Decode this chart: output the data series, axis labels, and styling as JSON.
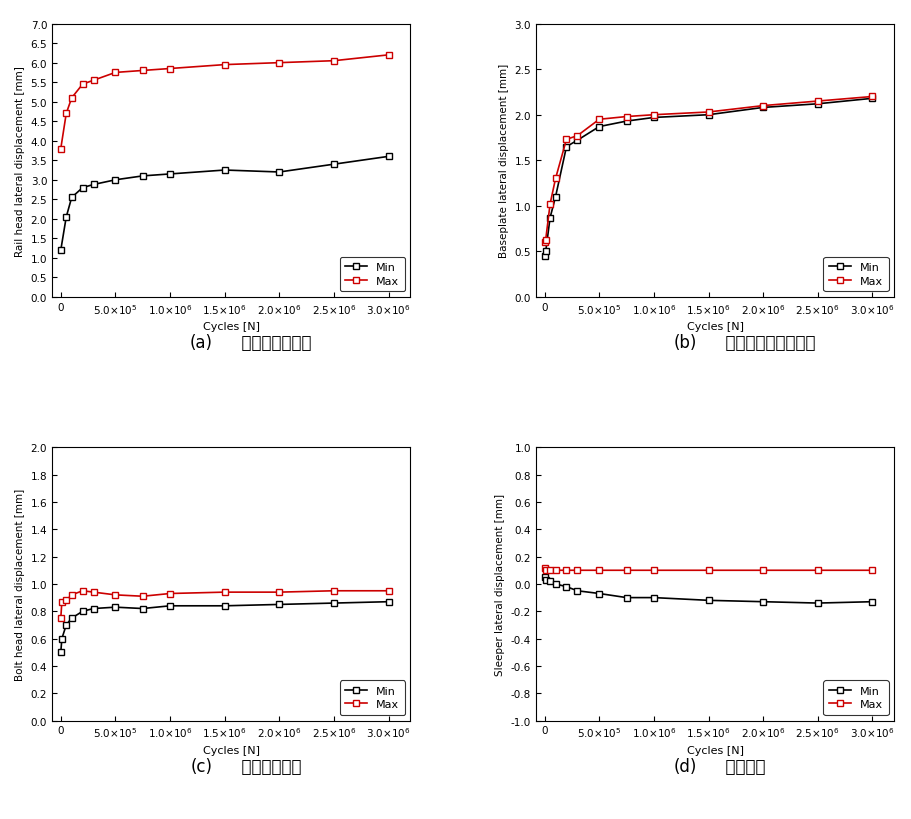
{
  "cycles_a": [
    0,
    50000,
    100000,
    200000,
    300000,
    500000,
    750000,
    1000000,
    1500000,
    2000000,
    2500000,
    3000000
  ],
  "cycles_b": [
    0,
    10000,
    50000,
    100000,
    200000,
    300000,
    500000,
    750000,
    1000000,
    1500000,
    2000000,
    2500000,
    3000000
  ],
  "cycles_c": [
    0,
    10000,
    50000,
    100000,
    200000,
    300000,
    500000,
    750000,
    1000000,
    1500000,
    2000000,
    2500000,
    3000000
  ],
  "cycles_d": [
    0,
    10000,
    50000,
    100000,
    200000,
    300000,
    500000,
    750000,
    1000000,
    1500000,
    2000000,
    2500000,
    3000000
  ],
  "subplot_a": {
    "title_a": "(a)",
    "title_b": "레일두부횟변위",
    "ylabel": "Rail head lateral displacement [mm]",
    "ylim": [
      0.0,
      7.0
    ],
    "yticks": [
      0.0,
      0.5,
      1.0,
      1.5,
      2.0,
      2.5,
      3.0,
      3.5,
      4.0,
      4.5,
      5.0,
      5.5,
      6.0,
      6.5,
      7.0
    ],
    "min_values": [
      1.2,
      2.05,
      2.55,
      2.8,
      2.88,
      3.0,
      3.1,
      3.15,
      3.25,
      3.2,
      3.4,
      3.6
    ],
    "max_values": [
      3.8,
      4.7,
      5.1,
      5.45,
      5.55,
      5.75,
      5.8,
      5.85,
      5.95,
      6.0,
      6.05,
      6.2
    ]
  },
  "subplot_b": {
    "title_a": "(b)",
    "title_b": "베이스플레이트변위",
    "ylabel": "Baseplate lateral displacement [mm]",
    "ylim": [
      0.0,
      3.0
    ],
    "yticks": [
      0.0,
      0.5,
      1.0,
      1.5,
      2.0,
      2.5,
      3.0
    ],
    "min_values": [
      0.45,
      0.5,
      0.87,
      1.1,
      1.65,
      1.72,
      1.87,
      1.93,
      1.97,
      2.0,
      2.08,
      2.12,
      2.18
    ],
    "max_values": [
      0.6,
      0.63,
      1.02,
      1.3,
      1.73,
      1.77,
      1.95,
      1.98,
      2.0,
      2.03,
      2.1,
      2.15,
      2.2
    ]
  },
  "subplot_c": {
    "title_a": "(c)",
    "title_b": "봇트두부변위",
    "ylabel": "Bolt head lateral displacement [mm]",
    "ylim": [
      0.0,
      2.0
    ],
    "yticks": [
      0.0,
      0.2,
      0.4,
      0.6,
      0.8,
      1.0,
      1.2,
      1.4,
      1.6,
      1.8,
      2.0
    ],
    "min_values": [
      0.5,
      0.6,
      0.7,
      0.75,
      0.8,
      0.82,
      0.83,
      0.82,
      0.84,
      0.84,
      0.85,
      0.86,
      0.87
    ],
    "max_values": [
      0.75,
      0.87,
      0.88,
      0.92,
      0.95,
      0.94,
      0.92,
      0.91,
      0.93,
      0.94,
      0.94,
      0.95,
      0.95
    ]
  },
  "subplot_d": {
    "title_a": "(d)",
    "title_b": "침목변위",
    "ylabel": "Sleeper lateral displacement [mm]",
    "ylim": [
      -1.0,
      1.0
    ],
    "yticks": [
      -1.0,
      -0.8,
      -0.6,
      -0.4,
      -0.2,
      0.0,
      0.2,
      0.4,
      0.6,
      0.8,
      1.0
    ],
    "min_values": [
      0.05,
      0.03,
      0.02,
      0.0,
      -0.02,
      -0.05,
      -0.07,
      -0.1,
      -0.1,
      -0.12,
      -0.13,
      -0.14,
      -0.13
    ],
    "max_values": [
      0.12,
      0.1,
      0.1,
      0.1,
      0.1,
      0.1,
      0.1,
      0.1,
      0.1,
      0.1,
      0.1,
      0.1,
      0.1
    ]
  },
  "min_color": "#000000",
  "max_color": "#cc0000",
  "marker": "s",
  "markersize": 5,
  "linewidth": 1.2,
  "xlabel": "Cycles [N]",
  "legend_min": "Min",
  "legend_max": "Max",
  "background_color": "#ffffff",
  "xticks": [
    0,
    500000,
    1000000,
    1500000,
    2000000,
    2500000,
    3000000
  ],
  "xlim": [
    -80000,
    3200000
  ]
}
